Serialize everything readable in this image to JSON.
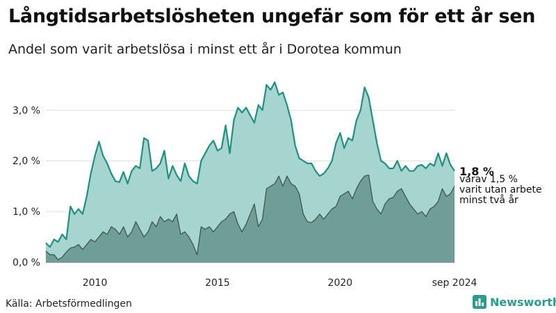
{
  "header": {
    "title": "Långtidsarbetslösheten ungefär som för ett år sen",
    "subtitle": "Andel som varit arbetslösa i minst ett år i Dorotea kommun"
  },
  "footer": {
    "source": "Källa: Arbetsförmedlingen",
    "brand": "Newsworthy"
  },
  "colors": {
    "total_fill": "#a6d4cf",
    "total_line": "#1f8f7f",
    "longterm_fill": "#6f9e96",
    "longterm_line": "#3a4d4a",
    "grid": "#dddddd",
    "brand": "#2b9d8c"
  },
  "chart_data": {
    "type": "area",
    "x_start": "2008-01",
    "x_end": "2024-09",
    "x_tick_labels": [
      {
        "date": "2010-01",
        "label": "2010"
      },
      {
        "date": "2015-01",
        "label": "2015"
      },
      {
        "date": "2020-01",
        "label": "2020"
      },
      {
        "date": "2024-09",
        "label": "sep 2024"
      }
    ],
    "y_ticks": [
      0,
      1,
      2,
      3
    ],
    "y_tick_labels": [
      "0,0 %",
      "1,0 %",
      "2,0 %",
      "3,0 %"
    ],
    "ylim": [
      0,
      3.8
    ],
    "grid": true,
    "series": [
      {
        "key": "total",
        "values": [
          [
            "2008-01",
            0.38
          ],
          [
            "2008-03",
            0.3
          ],
          [
            "2008-05",
            0.45
          ],
          [
            "2008-07",
            0.4
          ],
          [
            "2008-09",
            0.55
          ],
          [
            "2008-11",
            0.45
          ],
          [
            "2009-01",
            1.1
          ],
          [
            "2009-03",
            0.95
          ],
          [
            "2009-05",
            1.05
          ],
          [
            "2009-07",
            0.95
          ],
          [
            "2009-09",
            1.3
          ],
          [
            "2009-11",
            1.75
          ],
          [
            "2010-01",
            2.1
          ],
          [
            "2010-03",
            2.38
          ],
          [
            "2010-05",
            2.1
          ],
          [
            "2010-07",
            1.95
          ],
          [
            "2010-09",
            1.75
          ],
          [
            "2010-11",
            1.6
          ],
          [
            "2011-01",
            1.58
          ],
          [
            "2011-03",
            1.78
          ],
          [
            "2011-05",
            1.55
          ],
          [
            "2011-07",
            1.8
          ],
          [
            "2011-09",
            1.9
          ],
          [
            "2011-11",
            1.85
          ],
          [
            "2012-01",
            2.45
          ],
          [
            "2012-03",
            2.4
          ],
          [
            "2012-05",
            1.8
          ],
          [
            "2012-07",
            1.85
          ],
          [
            "2012-09",
            1.95
          ],
          [
            "2012-11",
            2.2
          ],
          [
            "2013-01",
            1.65
          ],
          [
            "2013-03",
            1.9
          ],
          [
            "2013-05",
            1.72
          ],
          [
            "2013-07",
            1.6
          ],
          [
            "2013-09",
            1.95
          ],
          [
            "2013-11",
            1.7
          ],
          [
            "2014-01",
            1.6
          ],
          [
            "2014-03",
            1.55
          ],
          [
            "2014-05",
            2.0
          ],
          [
            "2014-07",
            2.15
          ],
          [
            "2014-09",
            2.3
          ],
          [
            "2014-11",
            2.4
          ],
          [
            "2015-01",
            2.2
          ],
          [
            "2015-03",
            2.25
          ],
          [
            "2015-05",
            2.7
          ],
          [
            "2015-07",
            2.15
          ],
          [
            "2015-09",
            2.8
          ],
          [
            "2015-11",
            3.05
          ],
          [
            "2016-01",
            2.95
          ],
          [
            "2016-03",
            3.05
          ],
          [
            "2016-05",
            2.9
          ],
          [
            "2016-07",
            2.75
          ],
          [
            "2016-09",
            3.1
          ],
          [
            "2016-11",
            3.0
          ],
          [
            "2017-01",
            3.5
          ],
          [
            "2017-03",
            3.4
          ],
          [
            "2017-05",
            3.55
          ],
          [
            "2017-07",
            3.3
          ],
          [
            "2017-09",
            3.35
          ],
          [
            "2017-11",
            3.1
          ],
          [
            "2018-01",
            2.8
          ],
          [
            "2018-03",
            2.3
          ],
          [
            "2018-05",
            2.05
          ],
          [
            "2018-07",
            2.0
          ],
          [
            "2018-09",
            1.95
          ],
          [
            "2018-11",
            1.95
          ],
          [
            "2019-01",
            1.8
          ],
          [
            "2019-03",
            1.7
          ],
          [
            "2019-05",
            1.75
          ],
          [
            "2019-07",
            1.85
          ],
          [
            "2019-09",
            2.0
          ],
          [
            "2019-11",
            2.35
          ],
          [
            "2020-01",
            2.55
          ],
          [
            "2020-03",
            2.25
          ],
          [
            "2020-05",
            2.45
          ],
          [
            "2020-07",
            2.4
          ],
          [
            "2020-09",
            2.8
          ],
          [
            "2020-11",
            3.0
          ],
          [
            "2021-01",
            3.45
          ],
          [
            "2021-03",
            3.25
          ],
          [
            "2021-05",
            2.8
          ],
          [
            "2021-07",
            2.35
          ],
          [
            "2021-09",
            2.0
          ],
          [
            "2021-11",
            1.95
          ],
          [
            "2022-01",
            1.85
          ],
          [
            "2022-03",
            1.85
          ],
          [
            "2022-05",
            2.0
          ],
          [
            "2022-07",
            1.8
          ],
          [
            "2022-09",
            1.9
          ],
          [
            "2022-11",
            1.8
          ],
          [
            "2023-01",
            1.8
          ],
          [
            "2023-03",
            1.9
          ],
          [
            "2023-05",
            1.92
          ],
          [
            "2023-07",
            1.85
          ],
          [
            "2023-09",
            1.95
          ],
          [
            "2023-11",
            1.9
          ],
          [
            "2024-01",
            2.15
          ],
          [
            "2024-03",
            1.9
          ],
          [
            "2024-05",
            2.15
          ],
          [
            "2024-07",
            1.92
          ],
          [
            "2024-09",
            1.8
          ]
        ]
      },
      {
        "key": "longterm",
        "values": [
          [
            "2008-01",
            0.22
          ],
          [
            "2008-03",
            0.15
          ],
          [
            "2008-05",
            0.15
          ],
          [
            "2008-07",
            0.05
          ],
          [
            "2008-09",
            0.1
          ],
          [
            "2008-11",
            0.2
          ],
          [
            "2009-01",
            0.28
          ],
          [
            "2009-03",
            0.3
          ],
          [
            "2009-05",
            0.35
          ],
          [
            "2009-07",
            0.25
          ],
          [
            "2009-09",
            0.35
          ],
          [
            "2009-11",
            0.45
          ],
          [
            "2010-01",
            0.4
          ],
          [
            "2010-03",
            0.5
          ],
          [
            "2010-05",
            0.6
          ],
          [
            "2010-07",
            0.55
          ],
          [
            "2010-09",
            0.7
          ],
          [
            "2010-11",
            0.65
          ],
          [
            "2011-01",
            0.55
          ],
          [
            "2011-03",
            0.7
          ],
          [
            "2011-05",
            0.5
          ],
          [
            "2011-07",
            0.6
          ],
          [
            "2011-09",
            0.8
          ],
          [
            "2011-11",
            0.65
          ],
          [
            "2012-01",
            0.5
          ],
          [
            "2012-03",
            0.6
          ],
          [
            "2012-05",
            0.8
          ],
          [
            "2012-07",
            0.7
          ],
          [
            "2012-09",
            0.9
          ],
          [
            "2012-11",
            0.8
          ],
          [
            "2013-01",
            0.85
          ],
          [
            "2013-03",
            0.8
          ],
          [
            "2013-05",
            0.95
          ],
          [
            "2013-07",
            0.55
          ],
          [
            "2013-09",
            0.6
          ],
          [
            "2013-11",
            0.5
          ],
          [
            "2014-01",
            0.35
          ],
          [
            "2014-03",
            0.15
          ],
          [
            "2014-05",
            0.7
          ],
          [
            "2014-07",
            0.65
          ],
          [
            "2014-09",
            0.7
          ],
          [
            "2014-11",
            0.6
          ],
          [
            "2015-01",
            0.7
          ],
          [
            "2015-03",
            0.8
          ],
          [
            "2015-05",
            0.85
          ],
          [
            "2015-07",
            0.95
          ],
          [
            "2015-09",
            1.0
          ],
          [
            "2015-11",
            0.75
          ],
          [
            "2016-01",
            0.6
          ],
          [
            "2016-03",
            0.75
          ],
          [
            "2016-05",
            0.95
          ],
          [
            "2016-07",
            1.15
          ],
          [
            "2016-09",
            0.7
          ],
          [
            "2016-11",
            0.85
          ],
          [
            "2017-01",
            1.45
          ],
          [
            "2017-03",
            1.5
          ],
          [
            "2017-05",
            1.55
          ],
          [
            "2017-07",
            1.7
          ],
          [
            "2017-09",
            1.5
          ],
          [
            "2017-11",
            1.7
          ],
          [
            "2018-01",
            1.55
          ],
          [
            "2018-03",
            1.5
          ],
          [
            "2018-05",
            1.35
          ],
          [
            "2018-07",
            0.95
          ],
          [
            "2018-09",
            0.8
          ],
          [
            "2018-11",
            0.78
          ],
          [
            "2019-01",
            0.85
          ],
          [
            "2019-03",
            0.95
          ],
          [
            "2019-05",
            0.85
          ],
          [
            "2019-07",
            0.95
          ],
          [
            "2019-09",
            1.05
          ],
          [
            "2019-11",
            1.1
          ],
          [
            "2020-01",
            1.3
          ],
          [
            "2020-03",
            1.35
          ],
          [
            "2020-05",
            1.4
          ],
          [
            "2020-07",
            1.25
          ],
          [
            "2020-09",
            1.45
          ],
          [
            "2020-11",
            1.6
          ],
          [
            "2021-01",
            1.7
          ],
          [
            "2021-03",
            1.72
          ],
          [
            "2021-05",
            1.2
          ],
          [
            "2021-07",
            1.05
          ],
          [
            "2021-09",
            0.95
          ],
          [
            "2021-11",
            1.15
          ],
          [
            "2022-01",
            1.25
          ],
          [
            "2022-03",
            1.28
          ],
          [
            "2022-05",
            1.4
          ],
          [
            "2022-07",
            1.45
          ],
          [
            "2022-09",
            1.3
          ],
          [
            "2022-11",
            1.15
          ],
          [
            "2023-01",
            1.05
          ],
          [
            "2023-03",
            0.95
          ],
          [
            "2023-05",
            1.0
          ],
          [
            "2023-07",
            0.9
          ],
          [
            "2023-09",
            1.05
          ],
          [
            "2023-11",
            1.1
          ],
          [
            "2024-01",
            1.2
          ],
          [
            "2024-03",
            1.45
          ],
          [
            "2024-05",
            1.3
          ],
          [
            "2024-07",
            1.35
          ],
          [
            "2024-09",
            1.5
          ]
        ]
      }
    ],
    "annotation": {
      "value_label": "1,8 %",
      "lines": [
        "varav 1,5 %",
        "varit utan arbete",
        "minst två år"
      ]
    }
  }
}
